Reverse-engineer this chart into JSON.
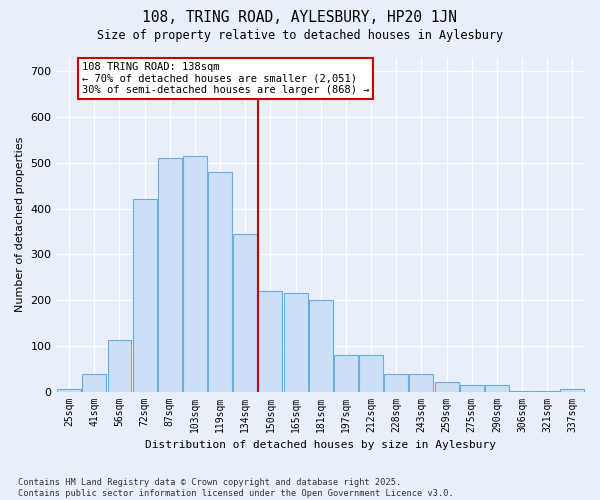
{
  "title": "108, TRING ROAD, AYLESBURY, HP20 1JN",
  "subtitle": "Size of property relative to detached houses in Aylesbury",
  "xlabel": "Distribution of detached houses by size in Aylesbury",
  "ylabel": "Number of detached properties",
  "categories": [
    "25sqm",
    "41sqm",
    "56sqm",
    "72sqm",
    "87sqm",
    "103sqm",
    "119sqm",
    "134sqm",
    "150sqm",
    "165sqm",
    "181sqm",
    "197sqm",
    "212sqm",
    "228sqm",
    "243sqm",
    "259sqm",
    "275sqm",
    "290sqm",
    "306sqm",
    "321sqm",
    "337sqm"
  ],
  "values": [
    5,
    38,
    112,
    420,
    510,
    515,
    480,
    345,
    220,
    215,
    200,
    80,
    80,
    38,
    38,
    20,
    15,
    15,
    2,
    2,
    5
  ],
  "bar_color": "#ccdff5",
  "bar_edge_color": "#6aaee0",
  "property_line_color": "#cc0000",
  "property_line_index": 7.5,
  "annotation_text": "108 TRING ROAD: 138sqm\n← 70% of detached houses are smaller (2,051)\n30% of semi-detached houses are larger (868) →",
  "annotation_box_edge": "#cc0000",
  "background_color": "#e8eefa",
  "grid_color": "#ffffff",
  "footer": "Contains HM Land Registry data © Crown copyright and database right 2025.\nContains public sector information licensed under the Open Government Licence v3.0.",
  "ylim": [
    0,
    730
  ],
  "yticks": [
    0,
    100,
    200,
    300,
    400,
    500,
    600,
    700
  ]
}
